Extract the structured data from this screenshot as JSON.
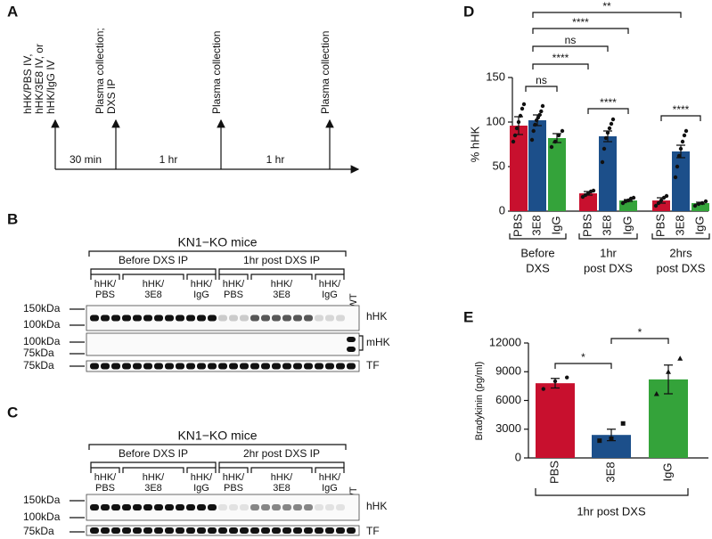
{
  "panel_labels": [
    "A",
    "B",
    "C",
    "D",
    "E"
  ],
  "timeline": {
    "events": [
      [
        "hHK/PBS IV,",
        "hHK/3E8 IV, or",
        "hHK/IgG  IV"
      ],
      [
        "Plasma collection;",
        "DXS IP"
      ],
      [
        "Plasma collection"
      ],
      [
        "Plasma collection"
      ]
    ],
    "intervals": [
      "30 min",
      "1 hr",
      "1 hr"
    ]
  },
  "blots": [
    {
      "title": "KN1−KO mice",
      "phases": [
        "Before DXS IP",
        "1hr post DXS IP"
      ],
      "groups": [
        [
          "hHK/",
          "PBS"
        ],
        [
          "hHK/",
          "3E8"
        ],
        [
          "hHK/",
          "IgG"
        ],
        [
          "hHK/",
          "PBS"
        ],
        [
          "hHK/",
          "3E8"
        ],
        [
          "hHK/",
          "IgG"
        ]
      ],
      "wt": "WT",
      "markers": [
        "150kDa",
        "100kDa",
        "100kDa",
        "75kDa",
        "75kDa"
      ],
      "bands": [
        "hHK",
        "mHK",
        "TF"
      ]
    },
    {
      "title": "KN1−KO mice",
      "phases": [
        "Before DXS IP",
        "2hr post DXS IP"
      ],
      "groups": [
        [
          "hHK/",
          "PBS"
        ],
        [
          "hHK/",
          "3E8"
        ],
        [
          "hHK/",
          "IgG"
        ],
        [
          "hHK/",
          "PBS"
        ],
        [
          "hHK/",
          "3E8"
        ],
        [
          "hHK/",
          "IgG"
        ]
      ],
      "wt": "WT",
      "markers": [
        "150kDa",
        "100kDa",
        "75kDa"
      ],
      "bands": [
        "hHK",
        "TF"
      ]
    }
  ],
  "chart_data": [
    {
      "type": "bar",
      "ylabel": "% hHK",
      "categories": [
        "PBS",
        "3E8",
        "IgG",
        "PBS",
        "3E8",
        "IgG",
        "PBS",
        "3E8",
        "IgG"
      ],
      "groups": [
        [
          "Before",
          "DXS"
        ],
        [
          "1hr",
          "post DXS"
        ],
        [
          "2hrs",
          "post DXS"
        ]
      ],
      "values": [
        96,
        102,
        82,
        20,
        84,
        12,
        12,
        67,
        9
      ],
      "errors": [
        10,
        6,
        5,
        2,
        6,
        1,
        3,
        7,
        1
      ],
      "points": [
        [
          78,
          85,
          93,
          100,
          107,
          115,
          120
        ],
        [
          80,
          90,
          97,
          102,
          105,
          108,
          112,
          118
        ],
        [
          72,
          78,
          85,
          90
        ],
        [
          16,
          18,
          20,
          22,
          23
        ],
        [
          55,
          70,
          82,
          88,
          93,
          98,
          103
        ],
        [
          9,
          11,
          12,
          14,
          15
        ],
        [
          6,
          9,
          12,
          15,
          17
        ],
        [
          38,
          50,
          62,
          70,
          78,
          85,
          90
        ],
        [
          6,
          8,
          9,
          11
        ]
      ],
      "colors": [
        "#c8102e",
        "#1c4f8a",
        "#34a33a",
        "#c8102e",
        "#1c4f8a",
        "#34a33a",
        "#c8102e",
        "#1c4f8a",
        "#34a33a"
      ],
      "ylim": [
        0,
        150
      ],
      "yticks": [
        0,
        50,
        100,
        150
      ],
      "annotations": [
        "ns",
        "****",
        "ns",
        "****",
        "**",
        "****",
        "****"
      ]
    },
    {
      "type": "bar",
      "ylabel": "Bradykinin (pg/ml)",
      "categories": [
        "PBS",
        "3E8",
        "IgG"
      ],
      "group": "1hr post DXS",
      "values": [
        7800,
        2400,
        8200
      ],
      "errors": [
        500,
        600,
        1500
      ],
      "points": [
        [
          7200,
          8000,
          8400
        ],
        [
          1800,
          2000,
          3600
        ],
        [
          6700,
          9000,
          10400
        ]
      ],
      "colors": [
        "#c8102e",
        "#1c4f8a",
        "#34a33a"
      ],
      "ylim": [
        0,
        12000
      ],
      "yticks": [
        0,
        3000,
        6000,
        9000,
        12000
      ],
      "annotations": [
        "*",
        "*"
      ]
    }
  ]
}
